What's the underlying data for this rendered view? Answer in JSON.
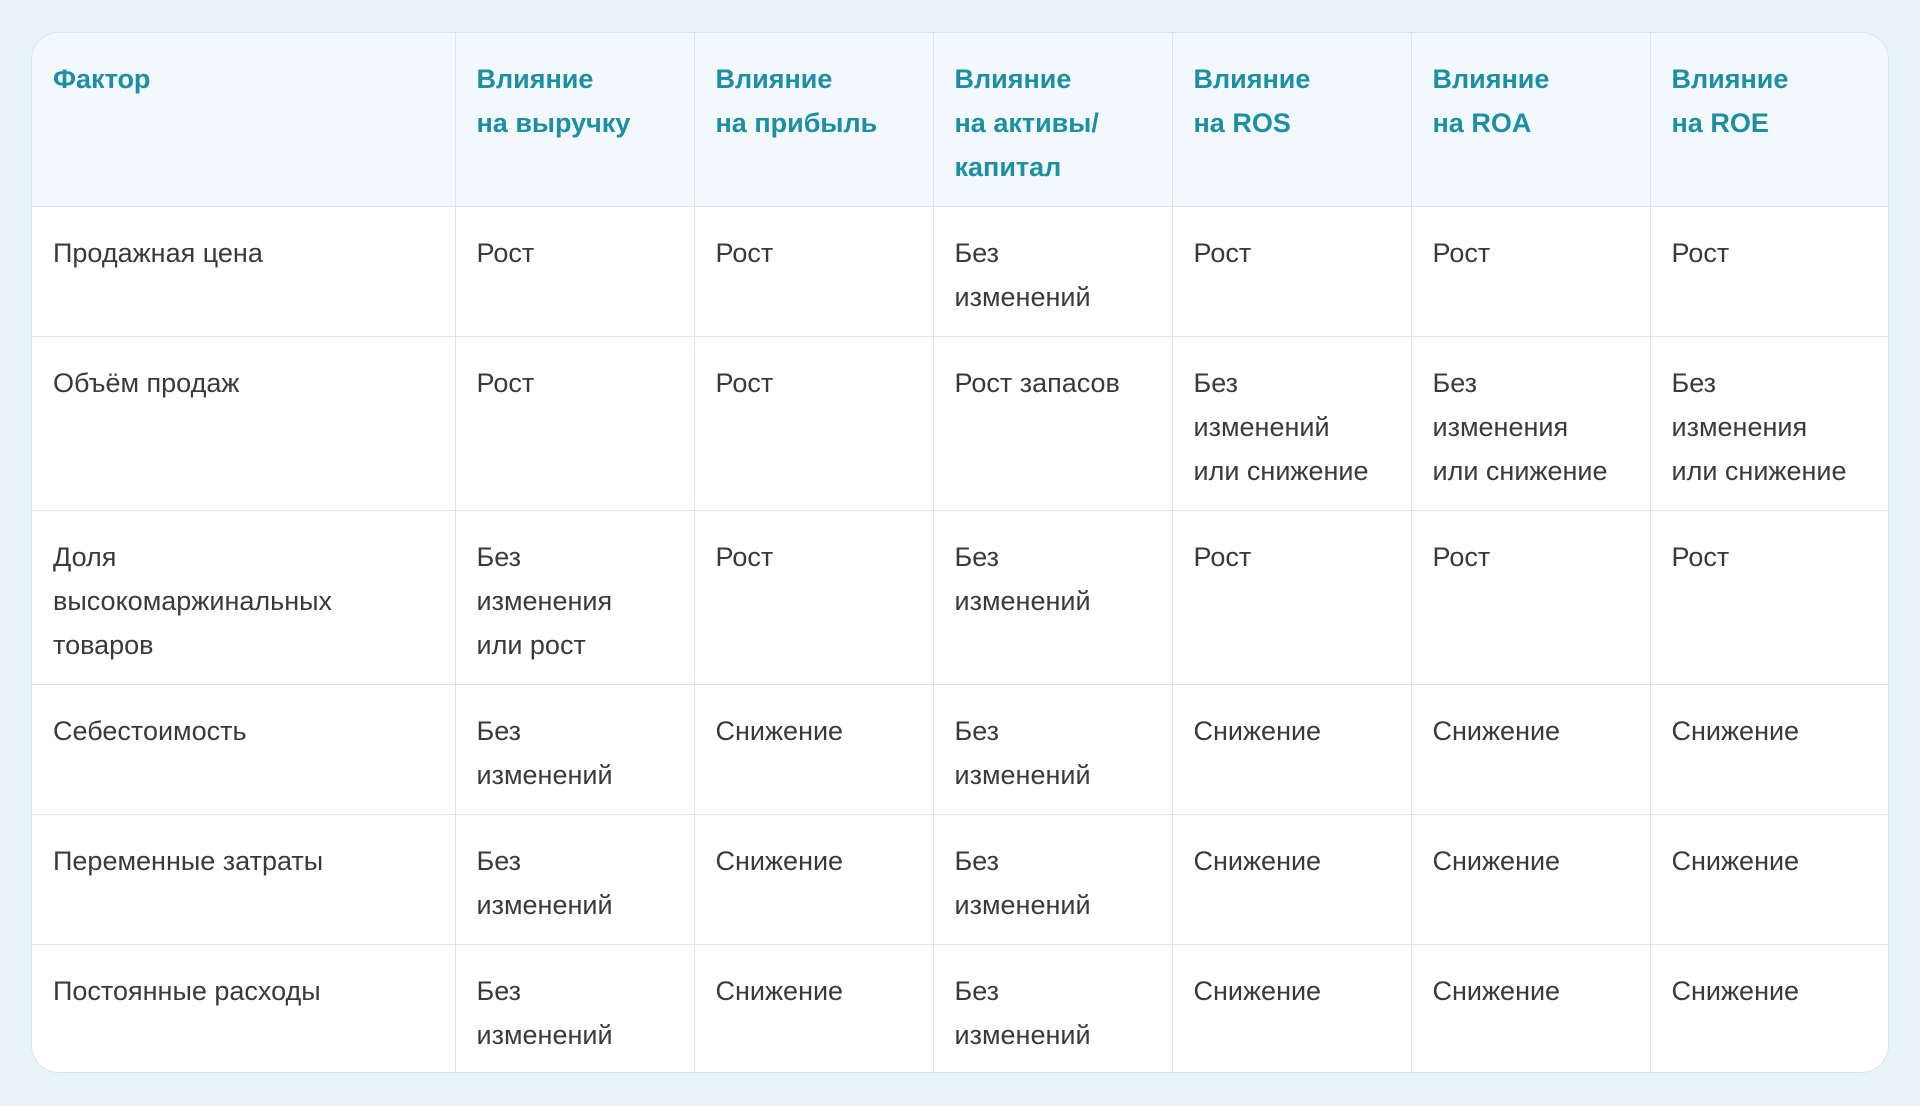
{
  "table": {
    "headers": [
      [
        "Фактор"
      ],
      [
        "Влияние",
        "на выручку"
      ],
      [
        "Влияние",
        "на прибыль"
      ],
      [
        "Влияние",
        "на активы/",
        "капитал"
      ],
      [
        "Влияние",
        "на ROS"
      ],
      [
        "Влияние",
        "на ROA"
      ],
      [
        "Влияние",
        "на ROE"
      ]
    ],
    "rows": [
      [
        [
          "Продажная цена"
        ],
        [
          "Рост"
        ],
        [
          "Рост"
        ],
        [
          "Без",
          "изменений"
        ],
        [
          "Рост"
        ],
        [
          "Рост"
        ],
        [
          "Рост"
        ]
      ],
      [
        [
          "Объём продаж"
        ],
        [
          "Рост"
        ],
        [
          "Рост"
        ],
        [
          "Рост запасов"
        ],
        [
          "Без",
          "изменений",
          "или снижение"
        ],
        [
          "Без",
          "изменения",
          "или снижение"
        ],
        [
          "Без",
          "изменения",
          "или снижение"
        ]
      ],
      [
        [
          "Доля",
          "высокомаржинальных",
          "товаров"
        ],
        [
          "Без",
          "изменения",
          "или рост"
        ],
        [
          "Рост"
        ],
        [
          "Без",
          "изменений"
        ],
        [
          "Рост"
        ],
        [
          "Рост"
        ],
        [
          "Рост"
        ]
      ],
      [
        [
          "Себестоимость"
        ],
        [
          "Без",
          "изменений"
        ],
        [
          "Снижение"
        ],
        [
          "Без",
          "изменений"
        ],
        [
          "Снижение"
        ],
        [
          "Снижение"
        ],
        [
          "Снижение"
        ]
      ],
      [
        [
          "Переменные затраты"
        ],
        [
          "Без",
          "изменений"
        ],
        [
          "Снижение"
        ],
        [
          "Без",
          "изменений"
        ],
        [
          "Снижение"
        ],
        [
          "Снижение"
        ],
        [
          "Снижение"
        ]
      ],
      [
        [
          "Постоянные расходы"
        ],
        [
          "Без",
          "изменений"
        ],
        [
          "Снижение"
        ],
        [
          "Без",
          "изменений"
        ],
        [
          "Снижение"
        ],
        [
          "Снижение"
        ],
        [
          "Снижение"
        ]
      ]
    ]
  }
}
